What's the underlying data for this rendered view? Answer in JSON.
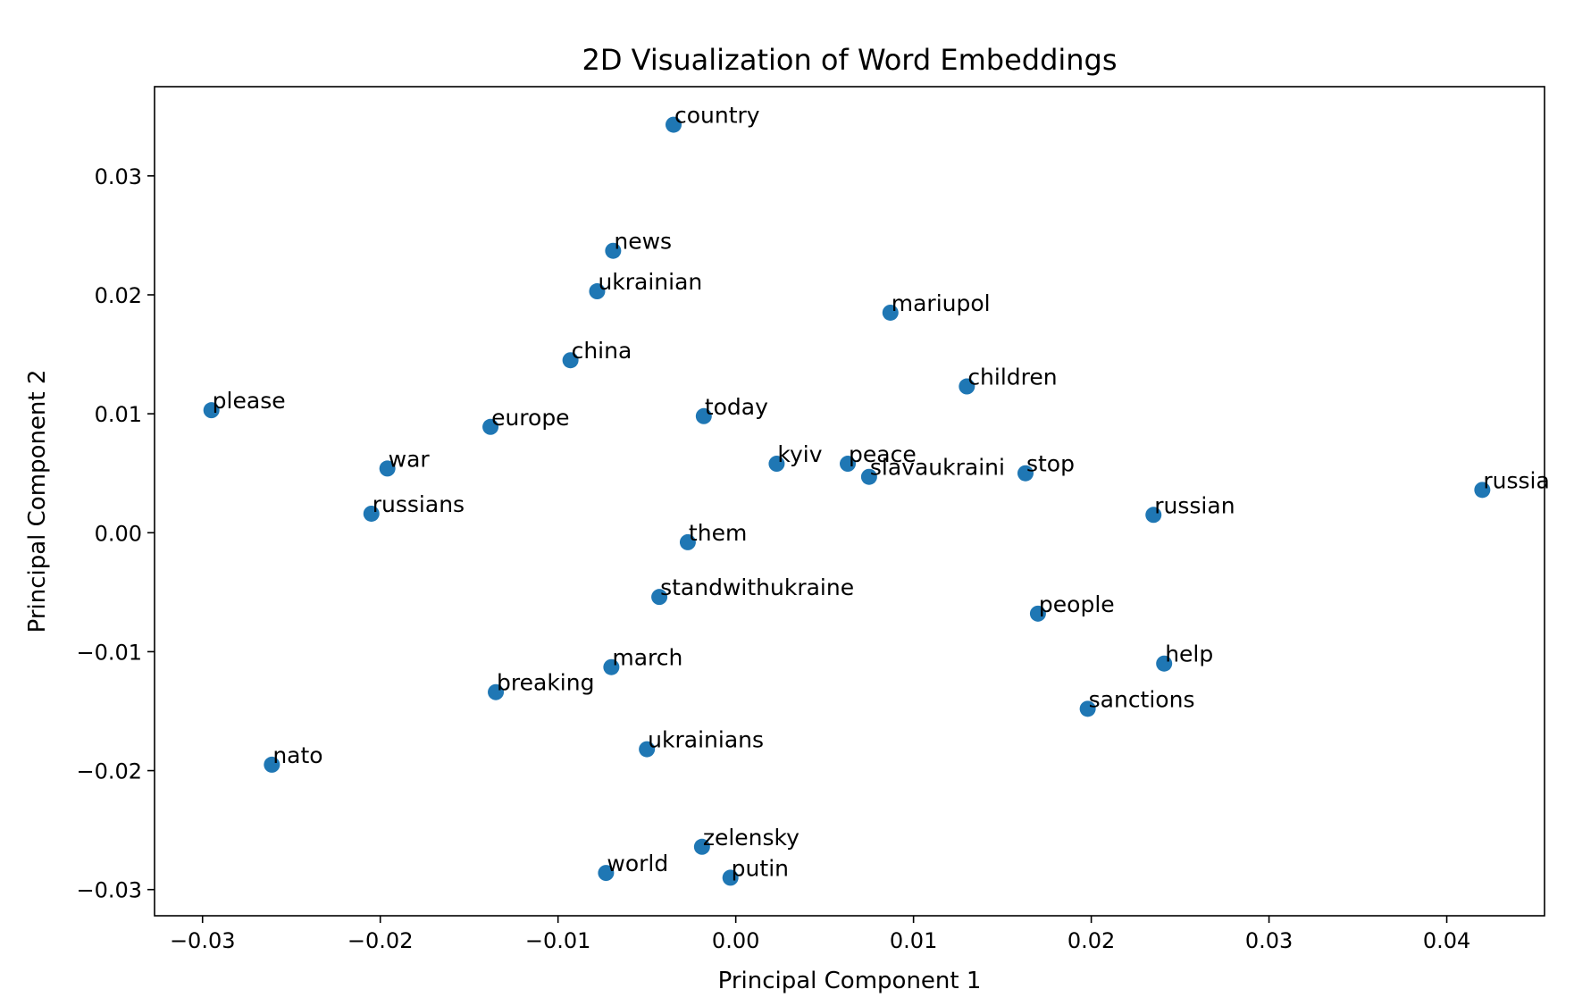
{
  "chart_data": {
    "type": "scatter",
    "title": "2D Visualization of Word Embeddings",
    "xlabel": "Principal Component 1",
    "ylabel": "Principal Component 2",
    "xlim": [
      -0.0327,
      0.0455
    ],
    "ylim": [
      -0.0322,
      0.0375
    ],
    "xticks": [
      -0.03,
      -0.02,
      -0.01,
      0.0,
      0.01,
      0.02,
      0.03,
      0.04
    ],
    "xtick_labels": [
      "−0.03",
      "−0.02",
      "−0.01",
      "0.00",
      "0.01",
      "0.02",
      "0.03",
      "0.04"
    ],
    "yticks": [
      -0.03,
      -0.02,
      -0.01,
      0.0,
      0.01,
      0.02,
      0.03
    ],
    "ytick_labels": [
      "−0.03",
      "−0.02",
      "−0.01",
      "0.00",
      "0.01",
      "0.02",
      "0.03"
    ],
    "grid": false,
    "marker_color": "#1f77b4",
    "points": [
      {
        "label": "country",
        "x": -0.0035,
        "y": 0.0343
      },
      {
        "label": "news",
        "x": -0.0069,
        "y": 0.0237
      },
      {
        "label": "ukrainian",
        "x": -0.0078,
        "y": 0.0203
      },
      {
        "label": "mariupol",
        "x": 0.0087,
        "y": 0.0185
      },
      {
        "label": "china",
        "x": -0.0093,
        "y": 0.0145
      },
      {
        "label": "children",
        "x": 0.013,
        "y": 0.0123
      },
      {
        "label": "please",
        "x": -0.0295,
        "y": 0.0103
      },
      {
        "label": "europe",
        "x": -0.0138,
        "y": 0.0089
      },
      {
        "label": "today",
        "x": -0.0018,
        "y": 0.0098
      },
      {
        "label": "kyiv",
        "x": 0.0023,
        "y": 0.0058
      },
      {
        "label": "peace",
        "x": 0.0063,
        "y": 0.0058
      },
      {
        "label": "slavaukraini",
        "x": 0.0075,
        "y": 0.0047
      },
      {
        "label": "stop",
        "x": 0.0163,
        "y": 0.005
      },
      {
        "label": "war",
        "x": -0.0196,
        "y": 0.0054
      },
      {
        "label": "russia",
        "x": 0.042,
        "y": 0.0036
      },
      {
        "label": "russians",
        "x": -0.0205,
        "y": 0.0016
      },
      {
        "label": "russian",
        "x": 0.0235,
        "y": 0.0015
      },
      {
        "label": "them",
        "x": -0.0027,
        "y": -0.0008
      },
      {
        "label": "standwithukraine",
        "x": -0.0043,
        "y": -0.0054
      },
      {
        "label": "people",
        "x": 0.017,
        "y": -0.0068
      },
      {
        "label": "march",
        "x": -0.007,
        "y": -0.0113
      },
      {
        "label": "help",
        "x": 0.0241,
        "y": -0.011
      },
      {
        "label": "breaking",
        "x": -0.0135,
        "y": -0.0134
      },
      {
        "label": "sanctions",
        "x": 0.0198,
        "y": -0.0148
      },
      {
        "label": "ukrainians",
        "x": -0.005,
        "y": -0.0182
      },
      {
        "label": "nato",
        "x": -0.0261,
        "y": -0.0195
      },
      {
        "label": "zelensky",
        "x": -0.0019,
        "y": -0.0264
      },
      {
        "label": "world",
        "x": -0.0073,
        "y": -0.0286
      },
      {
        "label": "putin",
        "x": -0.0003,
        "y": -0.029
      }
    ]
  }
}
